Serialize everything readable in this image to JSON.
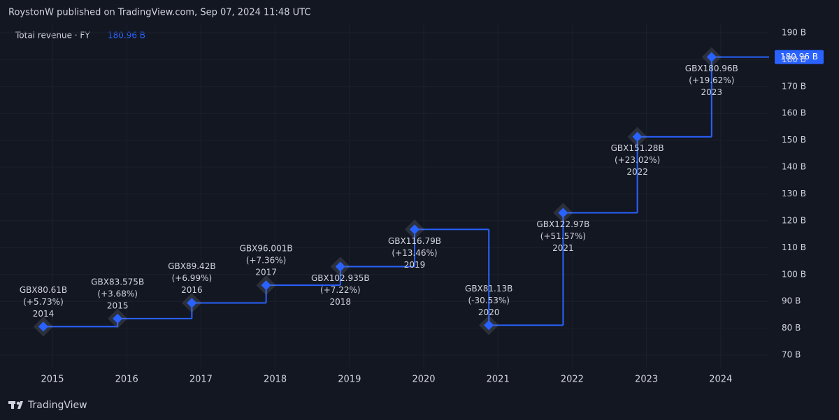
{
  "header": "RoystonW published on TradingView.com, Sep 07, 2024 11:48 UTC",
  "footer": "TradingView",
  "chart_data": {
    "type": "step",
    "legend_title": "Total revenue · FY",
    "legend_value": "180.96 B",
    "categories": [
      "2014",
      "2015",
      "2016",
      "2017",
      "2018",
      "2019",
      "2020",
      "2021",
      "2022",
      "2023"
    ],
    "values": [
      80.61,
      83.575,
      89.42,
      96.001,
      102.935,
      116.79,
      81.13,
      122.97,
      151.28,
      180.96
    ],
    "value_labels": [
      "GBX80.61B",
      "GBX83.575B",
      "GBX89.42B",
      "GBX96.001B",
      "GBX102.935B",
      "GBX116.79B",
      "GBX81.13B",
      "GBX122.97B",
      "GBX151.28B",
      "GBX180.96B"
    ],
    "change_labels": [
      "(+5.73%)",
      "(+3.68%)",
      "(+6.99%)",
      "(+7.36%)",
      "(+7.22%)",
      "(+13.46%)",
      "(-30.53%)",
      "(+51.57%)",
      "(+23.02%)",
      "(+19.62%)"
    ],
    "x_axis_labels": [
      "2015",
      "2016",
      "2017",
      "2018",
      "2019",
      "2020",
      "2021",
      "2022",
      "2023",
      "2024"
    ],
    "color": "#2962ff",
    "ylim": [
      65.6,
      193.1
    ],
    "yticks": [
      {
        "value": 70,
        "label": "70 B"
      },
      {
        "value": 80,
        "label": "80 B"
      },
      {
        "value": 90,
        "label": "90 B"
      },
      {
        "value": 100,
        "label": "100 B"
      },
      {
        "value": 110,
        "label": "110 B"
      },
      {
        "value": 120,
        "label": "120 B"
      },
      {
        "value": 130,
        "label": "130 B"
      },
      {
        "value": 140,
        "label": "140 B"
      },
      {
        "value": 150,
        "label": "150 B"
      },
      {
        "value": 160,
        "label": "160 B"
      },
      {
        "value": 170,
        "label": "170 B"
      },
      {
        "value": 180,
        "label": "180 B"
      },
      {
        "value": 190,
        "label": "190 B"
      }
    ],
    "grid": true
  }
}
